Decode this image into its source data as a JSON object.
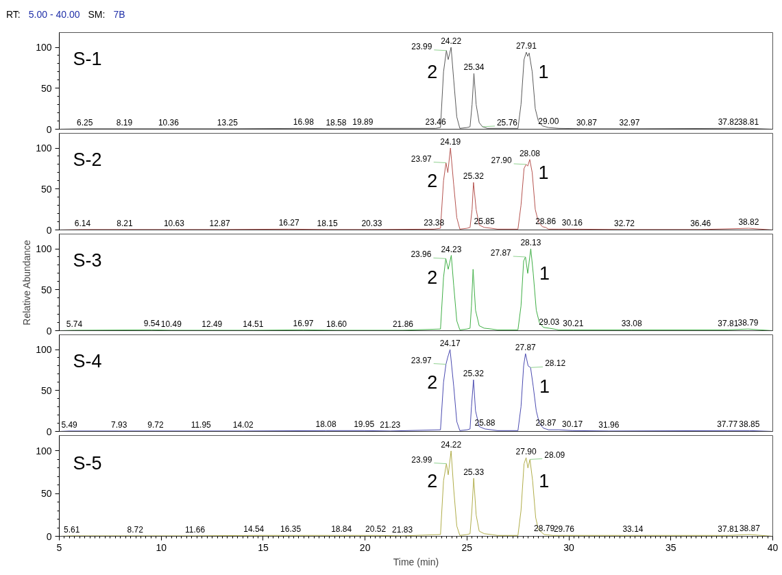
{
  "chart_data": [
    {
      "type": "line",
      "title": "S-1",
      "subtitle": "RT: 5.00 - 40.00 SM: 7B",
      "color": "#5a5a5a",
      "xlim": [
        5,
        40
      ],
      "xticks": [
        5,
        10,
        15,
        20,
        25,
        30,
        35,
        40
      ],
      "ylim": [
        0,
        118
      ],
      "yticks": [
        0,
        50,
        100
      ],
      "tick_labels": "y",
      "x": [
        5,
        6.25,
        8.19,
        10.36,
        13.25,
        16.98,
        18.58,
        19.89,
        23.46,
        23.7,
        23.85,
        23.99,
        24.08,
        24.22,
        24.35,
        24.5,
        24.65,
        25.0,
        25.15,
        25.25,
        25.34,
        25.45,
        25.6,
        25.76,
        26.0,
        26.5,
        27.5,
        27.65,
        27.8,
        27.91,
        27.98,
        28.05,
        28.2,
        28.35,
        28.5,
        28.7,
        29.0,
        29.5,
        30.87,
        32.97,
        37.82,
        38.81,
        40
      ],
      "values": [
        0,
        0.5,
        0.5,
        0.5,
        0.5,
        1,
        0.5,
        1,
        1,
        2,
        70,
        96,
        85,
        100,
        60,
        15,
        1,
        2,
        3,
        30,
        68,
        30,
        8,
        3,
        1,
        1,
        1,
        30,
        85,
        94,
        89,
        93,
        70,
        25,
        10,
        4,
        2,
        1,
        0.5,
        0.5,
        1,
        1,
        0
      ],
      "annotations": [
        {
          "text": "6.25",
          "x": 6.25,
          "y": 0.5
        },
        {
          "text": "8.19",
          "x": 8.19,
          "y": 0.5
        },
        {
          "text": "10.36",
          "x": 10.36,
          "y": 0.5
        },
        {
          "text": "13.25",
          "x": 13.25,
          "y": 0.5
        },
        {
          "text": "16.98",
          "x": 16.98,
          "y": 1
        },
        {
          "text": "18.58",
          "x": 18.58,
          "y": 0.5
        },
        {
          "text": "19.89",
          "x": 19.89,
          "y": 1
        },
        {
          "text": "23.46",
          "x": 23.46,
          "y": 1
        },
        {
          "text": "23.99",
          "x": 23.99,
          "y": 96
        },
        {
          "text": "24.22",
          "x": 24.22,
          "y": 100
        },
        {
          "text": "25.34",
          "x": 25.34,
          "y": 68
        },
        {
          "text": "25.76",
          "x": 25.76,
          "y": 3
        },
        {
          "text": "27.91",
          "x": 27.91,
          "y": 94
        },
        {
          "text": "29.00",
          "x": 29.0,
          "y": 2
        },
        {
          "text": "30.87",
          "x": 30.87,
          "y": 0.5
        },
        {
          "text": "32.97",
          "x": 32.97,
          "y": 0.5
        },
        {
          "text": "37.82",
          "x": 37.82,
          "y": 1
        },
        {
          "text": "38.81",
          "x": 38.81,
          "y": 1
        },
        {
          "text": "2",
          "x": 23.85,
          "y": 70
        },
        {
          "text": "1",
          "x": 28.2,
          "y": 70
        }
      ]
    },
    {
      "type": "line",
      "title": "S-2",
      "color": "#b5534f",
      "xlim": [
        5,
        40
      ],
      "xticks": [
        5,
        10,
        15,
        20,
        25,
        30,
        35,
        40
      ],
      "ylim": [
        0,
        118
      ],
      "yticks": [
        0,
        50,
        100
      ],
      "tick_labels": "y",
      "x": [
        5,
        6.14,
        8.21,
        10.63,
        12.87,
        16.27,
        18.15,
        20.33,
        23.38,
        23.7,
        23.85,
        23.97,
        24.06,
        24.19,
        24.35,
        24.5,
        24.65,
        25.0,
        25.15,
        25.25,
        25.32,
        25.45,
        25.6,
        25.85,
        26.2,
        26.5,
        27.5,
        27.65,
        27.8,
        27.9,
        27.98,
        28.08,
        28.2,
        28.35,
        28.5,
        28.7,
        28.86,
        29.0,
        29.5,
        30.16,
        32.72,
        36.46,
        38.82,
        40
      ],
      "values": [
        0,
        0.5,
        0.5,
        0.5,
        0.5,
        1,
        0.5,
        0.5,
        1,
        2,
        60,
        82,
        70,
        100,
        55,
        15,
        1,
        2,
        3,
        25,
        58,
        25,
        6,
        3,
        2,
        1,
        1,
        30,
        75,
        80,
        78,
        86,
        70,
        25,
        10,
        4,
        3,
        1,
        1,
        1,
        0.5,
        0.5,
        2,
        0
      ],
      "annotations": [
        {
          "text": "6.14",
          "x": 6.14,
          "y": 0.5
        },
        {
          "text": "8.21",
          "x": 8.21,
          "y": 0.5
        },
        {
          "text": "10.63",
          "x": 10.63,
          "y": 0.5
        },
        {
          "text": "12.87",
          "x": 12.87,
          "y": 0.5
        },
        {
          "text": "16.27",
          "x": 16.27,
          "y": 1
        },
        {
          "text": "18.15",
          "x": 18.15,
          "y": 0.5
        },
        {
          "text": "20.33",
          "x": 20.33,
          "y": 0.5
        },
        {
          "text": "23.38",
          "x": 23.38,
          "y": 1
        },
        {
          "text": "23.97",
          "x": 23.97,
          "y": 82
        },
        {
          "text": "24.19",
          "x": 24.19,
          "y": 100
        },
        {
          "text": "25.32",
          "x": 25.32,
          "y": 58
        },
        {
          "text": "25.85",
          "x": 25.85,
          "y": 3
        },
        {
          "text": "27.90",
          "x": 27.9,
          "y": 80
        },
        {
          "text": "28.08",
          "x": 28.08,
          "y": 86
        },
        {
          "text": "28.86",
          "x": 28.86,
          "y": 3
        },
        {
          "text": "30.16",
          "x": 30.16,
          "y": 1
        },
        {
          "text": "32.72",
          "x": 32.72,
          "y": 0.5
        },
        {
          "text": "36.46",
          "x": 36.46,
          "y": 0.5
        },
        {
          "text": "38.82",
          "x": 38.82,
          "y": 2
        },
        {
          "text": "2",
          "x": 23.85,
          "y": 60
        },
        {
          "text": "1",
          "x": 28.2,
          "y": 70
        }
      ]
    },
    {
      "type": "line",
      "title": "S-3",
      "ylabel": "Relative Abundance",
      "color": "#3fae45",
      "xlim": [
        5,
        40
      ],
      "xticks": [
        5,
        10,
        15,
        20,
        25,
        30,
        35,
        40
      ],
      "ylim": [
        0,
        118
      ],
      "yticks": [
        0,
        50,
        100
      ],
      "tick_labels": "y",
      "x": [
        5,
        5.74,
        9.54,
        10.49,
        12.49,
        14.51,
        16.97,
        18.6,
        21.86,
        23.7,
        23.85,
        23.96,
        24.08,
        24.23,
        24.35,
        24.5,
        24.65,
        25.0,
        25.15,
        25.22,
        25.3,
        25.42,
        25.6,
        25.85,
        26.2,
        26.5,
        27.5,
        27.65,
        27.78,
        27.87,
        27.98,
        28.13,
        28.25,
        28.4,
        28.55,
        28.75,
        29.03,
        29.5,
        30.21,
        33.08,
        37.81,
        38.79,
        40
      ],
      "values": [
        0,
        0.5,
        1,
        0.5,
        0.5,
        0.5,
        1,
        0.5,
        0.5,
        2,
        65,
        88,
        75,
        92,
        55,
        12,
        1,
        2,
        3,
        30,
        75,
        25,
        6,
        3,
        2,
        1,
        1,
        30,
        85,
        90,
        70,
        100,
        70,
        25,
        10,
        4,
        3,
        1,
        1,
        1,
        1,
        2,
        0
      ],
      "annotations": [
        {
          "text": "5.74",
          "x": 5.74,
          "y": 0.5
        },
        {
          "text": "9.54",
          "x": 9.54,
          "y": 1
        },
        {
          "text": "10.49",
          "x": 10.49,
          "y": 0.5
        },
        {
          "text": "12.49",
          "x": 12.49,
          "y": 0.5
        },
        {
          "text": "14.51",
          "x": 14.51,
          "y": 0.5
        },
        {
          "text": "16.97",
          "x": 16.97,
          "y": 1
        },
        {
          "text": "18.60",
          "x": 18.6,
          "y": 0.5
        },
        {
          "text": "21.86",
          "x": 21.86,
          "y": 0.5
        },
        {
          "text": "23.96",
          "x": 23.96,
          "y": 88
        },
        {
          "text": "24.23",
          "x": 24.23,
          "y": 92
        },
        {
          "text": "27.87",
          "x": 27.87,
          "y": 90
        },
        {
          "text": "28.13",
          "x": 28.13,
          "y": 100
        },
        {
          "text": "29.03",
          "x": 29.03,
          "y": 3
        },
        {
          "text": "30.21",
          "x": 30.21,
          "y": 1
        },
        {
          "text": "33.08",
          "x": 33.08,
          "y": 1
        },
        {
          "text": "37.81",
          "x": 37.81,
          "y": 1
        },
        {
          "text": "38.79",
          "x": 38.79,
          "y": 2
        },
        {
          "text": "2",
          "x": 23.85,
          "y": 65
        },
        {
          "text": "1",
          "x": 28.25,
          "y": 70
        }
      ]
    },
    {
      "type": "line",
      "title": "S-4",
      "color": "#4a4ab0",
      "xlim": [
        5,
        40
      ],
      "xticks": [
        5,
        10,
        15,
        20,
        25,
        30,
        35,
        40
      ],
      "ylim": [
        0,
        118
      ],
      "yticks": [
        0,
        50,
        100
      ],
      "tick_labels": "y",
      "x": [
        5,
        5.49,
        7.93,
        9.72,
        11.95,
        14.02,
        18.08,
        19.95,
        21.23,
        23.7,
        23.85,
        23.97,
        24.05,
        24.17,
        24.35,
        24.5,
        24.65,
        25.0,
        25.15,
        25.22,
        25.32,
        25.42,
        25.6,
        25.88,
        26.2,
        26.5,
        27.5,
        27.65,
        27.78,
        27.87,
        28.0,
        28.12,
        28.25,
        28.4,
        28.55,
        28.75,
        28.87,
        29.0,
        29.5,
        30.17,
        31.96,
        37.77,
        38.85,
        40
      ],
      "values": [
        0,
        0.5,
        0.5,
        0.5,
        0.5,
        0.5,
        1,
        1,
        0.5,
        2,
        60,
        82,
        90,
        100,
        55,
        12,
        1,
        2,
        3,
        30,
        63,
        25,
        6,
        3,
        2,
        1,
        1,
        30,
        80,
        95,
        80,
        78,
        55,
        25,
        10,
        4,
        3,
        2,
        2,
        1,
        0.5,
        1,
        1,
        0
      ],
      "annotations": [
        {
          "text": "5.49",
          "x": 5.49,
          "y": 0.5
        },
        {
          "text": "7.93",
          "x": 7.93,
          "y": 0.5
        },
        {
          "text": "9.72",
          "x": 9.72,
          "y": 0.5
        },
        {
          "text": "11.95",
          "x": 11.95,
          "y": 0.5
        },
        {
          "text": "14.02",
          "x": 14.02,
          "y": 0.5
        },
        {
          "text": "18.08",
          "x": 18.08,
          "y": 1
        },
        {
          "text": "19.95",
          "x": 19.95,
          "y": 1
        },
        {
          "text": "21.23",
          "x": 21.23,
          "y": 0.5
        },
        {
          "text": "23.97",
          "x": 23.97,
          "y": 82
        },
        {
          "text": "24.17",
          "x": 24.17,
          "y": 100
        },
        {
          "text": "25.32",
          "x": 25.32,
          "y": 63
        },
        {
          "text": "25.88",
          "x": 25.88,
          "y": 3
        },
        {
          "text": "27.87",
          "x": 27.87,
          "y": 95
        },
        {
          "text": "28.12",
          "x": 28.12,
          "y": 78
        },
        {
          "text": "28.87",
          "x": 28.87,
          "y": 3
        },
        {
          "text": "30.17",
          "x": 30.17,
          "y": 1
        },
        {
          "text": "31.96",
          "x": 31.96,
          "y": 0.5
        },
        {
          "text": "37.77",
          "x": 37.77,
          "y": 1
        },
        {
          "text": "38.85",
          "x": 38.85,
          "y": 1
        },
        {
          "text": "2",
          "x": 23.85,
          "y": 60
        },
        {
          "text": "1",
          "x": 28.25,
          "y": 55
        }
      ]
    },
    {
      "type": "line",
      "title": "S-5",
      "xlabel": "Time (min)",
      "color": "#b0ad4a",
      "xlim": [
        5,
        40
      ],
      "xticks": [
        5,
        10,
        15,
        20,
        25,
        30,
        35,
        40
      ],
      "ylim": [
        0,
        118
      ],
      "yticks": [
        0,
        50,
        100
      ],
      "x": [
        5,
        5.61,
        8.72,
        11.66,
        14.54,
        16.35,
        18.84,
        20.52,
        21.83,
        23.7,
        23.85,
        23.99,
        24.08,
        24.22,
        24.35,
        24.5,
        24.65,
        25.0,
        25.15,
        25.24,
        25.33,
        25.45,
        25.6,
        25.85,
        26.2,
        26.5,
        27.5,
        27.65,
        27.8,
        27.9,
        27.99,
        28.09,
        28.22,
        28.37,
        28.5,
        28.79,
        29.2,
        29.76,
        33.14,
        37.81,
        38.87,
        40
      ],
      "values": [
        0,
        0.5,
        0.5,
        0.5,
        1,
        1,
        1,
        1,
        0.5,
        2,
        65,
        85,
        72,
        100,
        55,
        12,
        1,
        2,
        3,
        30,
        68,
        25,
        6,
        3,
        2,
        1,
        1,
        30,
        85,
        92,
        80,
        90,
        65,
        22,
        8,
        2,
        1,
        1,
        1,
        1,
        2,
        0
      ],
      "annotations": [
        {
          "text": "5.61",
          "x": 5.61,
          "y": 0.5
        },
        {
          "text": "8.72",
          "x": 8.72,
          "y": 0.5
        },
        {
          "text": "11.66",
          "x": 11.66,
          "y": 0.5
        },
        {
          "text": "14.54",
          "x": 14.54,
          "y": 1
        },
        {
          "text": "16.35",
          "x": 16.35,
          "y": 1
        },
        {
          "text": "18.84",
          "x": 18.84,
          "y": 1
        },
        {
          "text": "20.52",
          "x": 20.52,
          "y": 1
        },
        {
          "text": "21.83",
          "x": 21.83,
          "y": 0.5
        },
        {
          "text": "23.99",
          "x": 23.99,
          "y": 85
        },
        {
          "text": "24.22",
          "x": 24.22,
          "y": 100
        },
        {
          "text": "25.33",
          "x": 25.33,
          "y": 68
        },
        {
          "text": "27.90",
          "x": 27.9,
          "y": 92
        },
        {
          "text": "28.09",
          "x": 28.09,
          "y": 90
        },
        {
          "text": "28.79",
          "x": 28.79,
          "y": 2
        },
        {
          "text": "29.76",
          "x": 29.76,
          "y": 1
        },
        {
          "text": "33.14",
          "x": 33.14,
          "y": 1
        },
        {
          "text": "37.81",
          "x": 37.81,
          "y": 1
        },
        {
          "text": "38.87",
          "x": 38.87,
          "y": 2
        },
        {
          "text": "2",
          "x": 23.85,
          "y": 65
        },
        {
          "text": "1",
          "x": 28.22,
          "y": 65
        }
      ]
    }
  ]
}
